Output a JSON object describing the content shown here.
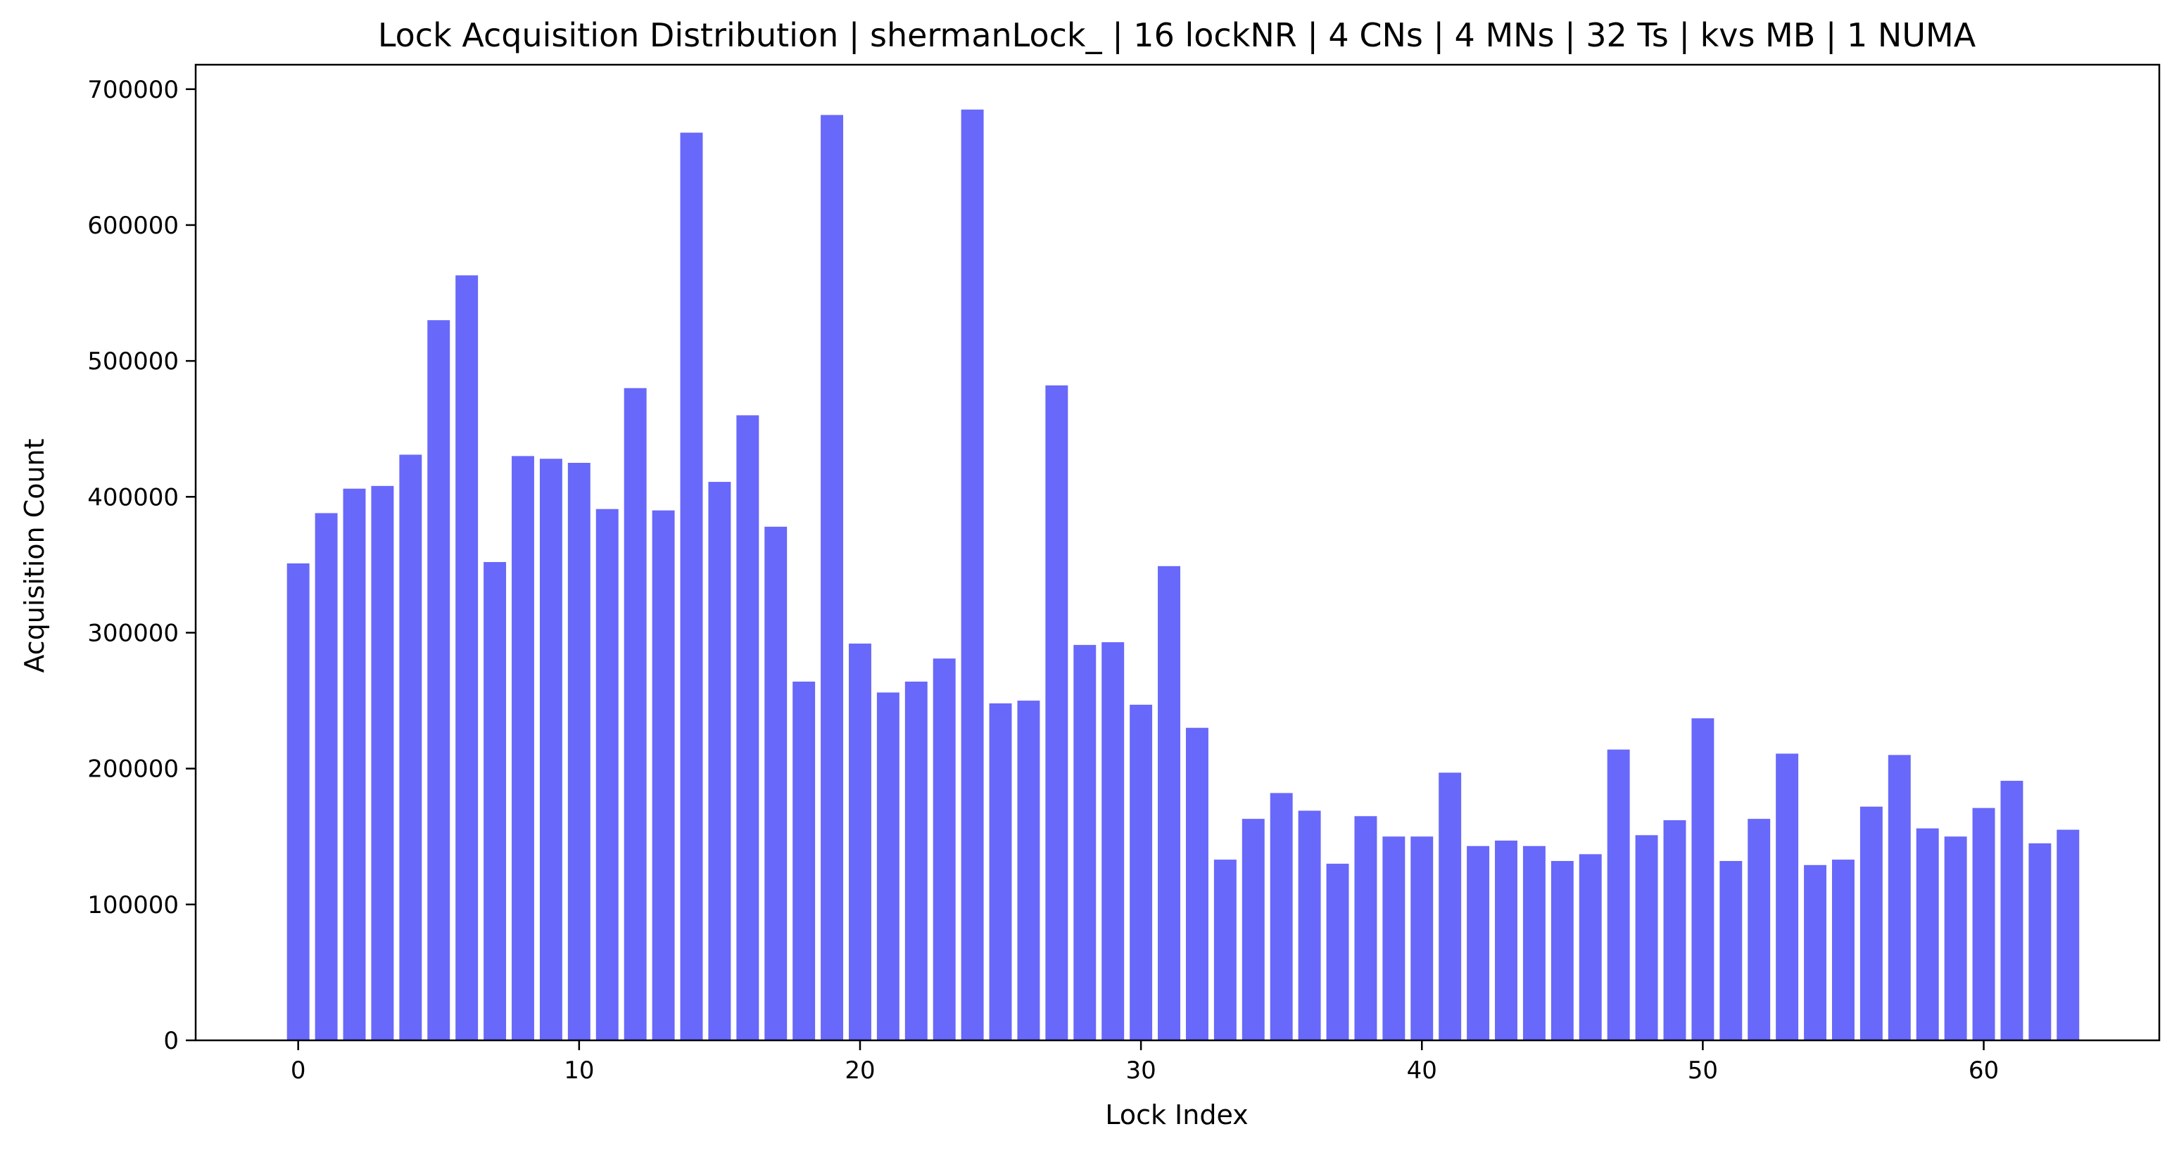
{
  "chart_data": {
    "type": "bar",
    "title": "Lock Acquisition Distribution | shermanLock_ | 16 lockNR | 4 CNs | 4 MNs | 32 Ts | kvs MB | 1 NUMA",
    "xlabel": "Lock Index",
    "ylabel": "Acquisition Count",
    "bar_color": "#6868fa",
    "grid": false,
    "legend": "none",
    "xlim": [
      -3.65,
      66.25
    ],
    "ylim": [
      0,
      718000
    ],
    "xticks": [
      0,
      10,
      20,
      30,
      40,
      50,
      60
    ],
    "yticks": [
      0,
      100000,
      200000,
      300000,
      400000,
      500000,
      600000,
      700000
    ],
    "x": [
      0,
      1,
      2,
      3,
      4,
      5,
      6,
      7,
      8,
      9,
      10,
      11,
      12,
      13,
      14,
      15,
      16,
      17,
      18,
      19,
      20,
      21,
      22,
      23,
      24,
      25,
      26,
      27,
      28,
      29,
      30,
      31,
      32,
      33,
      34,
      35,
      36,
      37,
      38,
      39,
      40,
      41,
      42,
      43,
      44,
      45,
      46,
      47,
      48,
      49,
      50,
      51,
      52,
      53,
      54,
      55,
      56,
      57,
      58,
      59,
      60,
      61,
      62,
      63
    ],
    "values": [
      351000,
      388000,
      406000,
      408000,
      431000,
      530000,
      563000,
      352000,
      430000,
      428000,
      425000,
      391000,
      480000,
      390000,
      668000,
      411000,
      460000,
      378000,
      264000,
      681000,
      292000,
      256000,
      264000,
      281000,
      685000,
      248000,
      250000,
      482000,
      291000,
      293000,
      247000,
      349000,
      230000,
      133000,
      163000,
      182000,
      169000,
      130000,
      165000,
      150000,
      150000,
      197000,
      143000,
      147000,
      143000,
      132000,
      137000,
      214000,
      151000,
      162000,
      237000,
      132000,
      163000,
      211000,
      129000,
      133000,
      172000,
      210000,
      156000,
      150000,
      171000,
      191000,
      145000,
      155000
    ]
  }
}
